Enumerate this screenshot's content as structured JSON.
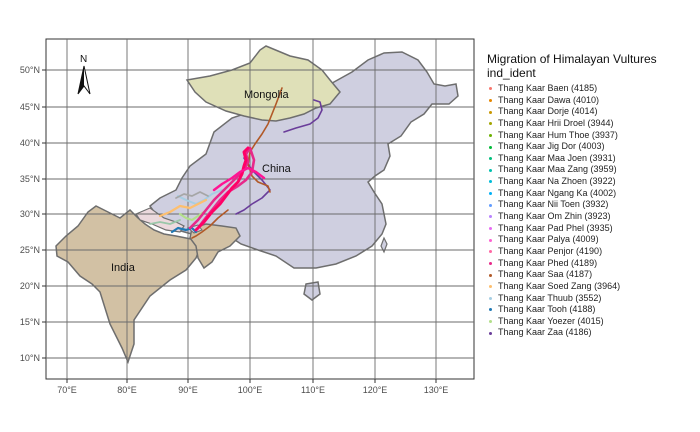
{
  "legend": {
    "title": "Migration of Himalayan Vultures",
    "subtitle": "ind_ident",
    "items": [
      {
        "label": "Thang Kaar Baen (4185)",
        "color": "#f8766d"
      },
      {
        "label": "Thang Kaar Dawa (4010)",
        "color": "#e58700"
      },
      {
        "label": "Thang Kaar Dorje (4014)",
        "color": "#c99800"
      },
      {
        "label": "Thang Kaar Hrii Droel (3944)",
        "color": "#a3a500"
      },
      {
        "label": "Thang Kaar Hum Thoe (3937)",
        "color": "#6bb100"
      },
      {
        "label": "Thang Kaar Jig Dor (4003)",
        "color": "#00ba38"
      },
      {
        "label": "Thang Kaar Maa Joen (3931)",
        "color": "#00bf7d"
      },
      {
        "label": "Thang Kaar Maa Zang (3959)",
        "color": "#00c0af"
      },
      {
        "label": "Thang Kaar Na Zhoen (3922)",
        "color": "#00bcd8"
      },
      {
        "label": "Thang Kaar Ngang Ka (4002)",
        "color": "#00b0f6"
      },
      {
        "label": "Thang Kaar Nii Toen (3932)",
        "color": "#619cff"
      },
      {
        "label": "Thang Kaar Om Zhin (3923)",
        "color": "#b983ff"
      },
      {
        "label": "Thang Kaar Pad Phel (3935)",
        "color": "#e76bf3"
      },
      {
        "label": "Thang Kaar Palya (4009)",
        "color": "#fd61d1"
      },
      {
        "label": "Thang Kaar Penjor (4190)",
        "color": "#ff67a4"
      },
      {
        "label": "Thang Kaar Phed (4189)",
        "color": "#e7298a"
      },
      {
        "label": "Thang Kaar Saa (4187)",
        "color": "#b15928"
      },
      {
        "label": "Thang Kaar Soed Zang (3964)",
        "color": "#fdbf6f"
      },
      {
        "label": "Thang Kaar Thuub (3552)",
        "color": "#a6cee3"
      },
      {
        "label": "Thang Kaar Tooh (4188)",
        "color": "#1f78b4"
      },
      {
        "label": "Thang Kaar Yoezer (4015)",
        "color": "#b2df8a"
      },
      {
        "label": "Thang Kaar Zaa (4186)",
        "color": "#6a3d9a"
      }
    ]
  },
  "map": {
    "x_ticks": [
      "70°E",
      "80°E",
      "90°E",
      "100°E",
      "110°E",
      "120°E",
      "130°E"
    ],
    "y_ticks": [
      "50°N",
      "45°N",
      "40°N",
      "35°N",
      "30°N",
      "25°N",
      "20°N",
      "15°N",
      "10°N"
    ],
    "regions": [
      {
        "label": "Mongolia",
        "color": "#dfe0b8"
      },
      {
        "label": "China",
        "color": "#cfcfe0"
      },
      {
        "label": "India",
        "color": "#d2c1a4"
      },
      {
        "label": "Nepal",
        "color": "#ecd9dd"
      },
      {
        "label": "Bhutan",
        "color": "#d9d3ea"
      }
    ],
    "north_arrow": "N",
    "panel_background": "#ffffff",
    "border_color": "#5c5c5c"
  }
}
